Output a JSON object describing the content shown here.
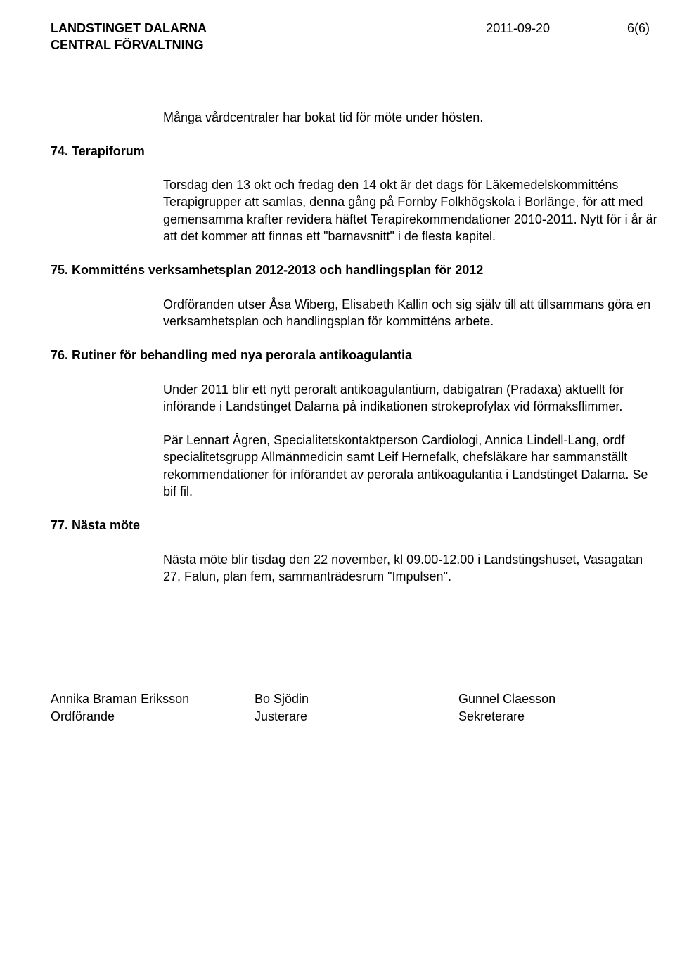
{
  "header": {
    "org_line1": "LANDSTINGET DALARNA",
    "org_line2": "CENTRAL FÖRVALTNING",
    "date": "2011-09-20",
    "page": "6(6)"
  },
  "body": {
    "intro_para": "Många vårdcentraler har bokat tid för möte under hösten.",
    "s74": {
      "heading": "74. Terapiforum",
      "para": "Torsdag den 13 okt och fredag den 14 okt är det dags för Läkemedelskommitténs Terapigrupper att samlas, denna gång på Fornby Folkhögskola i Borlänge, för att med gemensamma krafter revidera häftet Terapirekommendationer 2010-2011. Nytt för i år är att det kommer att finnas ett \"barnavsnitt\" i de flesta kapitel."
    },
    "s75": {
      "heading": "75. Kommitténs verksamhetsplan 2012-2013 och handlingsplan för 2012",
      "para": "Ordföranden utser Åsa Wiberg, Elisabeth Kallin och sig själv till att tillsammans göra en verksamhetsplan och handlingsplan för kommitténs arbete."
    },
    "s76": {
      "heading": "76. Rutiner för behandling med nya perorala antikoagulantia",
      "para1": "Under 2011 blir ett nytt peroralt antikoagulantium, dabigatran (Pradaxa) aktuellt för införande i Landstinget Dalarna på indikationen strokeprofylax vid förmaksflimmer.",
      "para2": "Pär Lennart Ågren, Specialitetskontaktperson Cardiologi, Annica Lindell-Lang, ordf specialitetsgrupp Allmänmedicin samt Leif Hernefalk, chefsläkare har sammanställt rekommendationer för införandet av perorala antikoagulantia i Landstinget Dalarna. Se bif fil."
    },
    "s77": {
      "heading": "77. Nästa möte",
      "para": "Nästa möte blir tisdag den 22 november, kl 09.00-12.00 i Landstingshuset, Vasagatan 27, Falun, plan fem, sammanträdesrum \"Impulsen\"."
    }
  },
  "signatures": {
    "left": {
      "name": "Annika Braman Eriksson",
      "role": "Ordförande"
    },
    "center": {
      "name": "Bo Sjödin",
      "role": "Justerare"
    },
    "right": {
      "name": "Gunnel Claesson",
      "role": "Sekreterare"
    }
  }
}
